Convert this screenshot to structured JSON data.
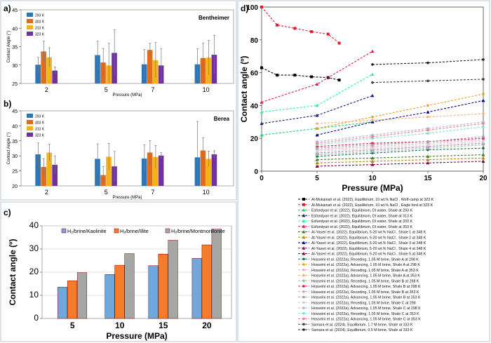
{
  "panels": {
    "a": "a)",
    "b": "b)",
    "c": "c)",
    "d": "d)"
  },
  "chart_data": [
    {
      "id": "a",
      "type": "bar",
      "title": "Bentheimer",
      "xlabel": "Pressure  (MPa)",
      "ylabel": "Contact Angle (°)",
      "ylim": [
        25,
        45
      ],
      "yticks": [
        25,
        30,
        35,
        40,
        45
      ],
      "categories": [
        "2",
        "5",
        "7",
        "10"
      ],
      "legend_location": "top-left",
      "series": [
        {
          "name": "293 K",
          "color": "#2e75b6",
          "values": [
            30.1,
            32.7,
            30.2,
            30.2
          ],
          "errors": [
            2.0,
            3.8,
            4.0,
            4.2
          ]
        },
        {
          "name": "303 K",
          "color": "#e06c1f",
          "values": [
            33.7,
            30.7,
            34.1,
            31.9
          ],
          "errors": [
            2.8,
            3.8,
            1.8,
            4.0
          ]
        },
        {
          "name": "313 K",
          "color": "#f2b418",
          "values": [
            32.1,
            29.9,
            31.3,
            32.0
          ],
          "errors": [
            2.6,
            6.0,
            4.8,
            4.7
          ]
        },
        {
          "name": "323 K",
          "color": "#7030a0",
          "values": [
            28.5,
            33.3,
            29.9,
            32.8
          ],
          "errors": [
            1.0,
            6.3,
            4.6,
            5.3
          ]
        }
      ]
    },
    {
      "id": "b",
      "type": "bar",
      "title": "Berea",
      "xlabel": "Pressure  (MPa)",
      "ylabel": "Contact Angle (°)",
      "ylim": [
        20,
        45
      ],
      "yticks": [
        20,
        25,
        30,
        35,
        40,
        45
      ],
      "categories": [
        "2",
        "5",
        "7",
        "10"
      ],
      "legend_location": "top-left",
      "series": [
        {
          "name": "293 K",
          "color": "#2e75b6",
          "values": [
            30.5,
            29.0,
            29.1,
            29.5
          ],
          "errors": [
            3.8,
            5.0,
            4.6,
            12.0
          ]
        },
        {
          "name": "303 K",
          "color": "#e06c1f",
          "values": [
            26.3,
            23.6,
            31.1,
            31.8
          ],
          "errors": [
            2.7,
            2.8,
            4.0,
            4.2
          ]
        },
        {
          "name": "313 K",
          "color": "#f2b418",
          "values": [
            31.1,
            29.7,
            29.6,
            29.0
          ],
          "errors": [
            2.8,
            4.5,
            3.8,
            2.6
          ]
        },
        {
          "name": "323 K",
          "color": "#7030a0",
          "values": [
            27.0,
            26.5,
            30.1,
            30.5
          ],
          "errors": [
            3.0,
            5.0,
            1.0,
            1.2
          ]
        }
      ]
    },
    {
      "id": "c",
      "type": "bar",
      "title": "",
      "xlabel": "Pressure (MPa)",
      "ylabel": "Contact angle (º)",
      "ylim": [
        0,
        40
      ],
      "yticks": [
        0,
        10,
        20,
        30,
        40
      ],
      "categories": [
        "5",
        "10",
        "15",
        "20"
      ],
      "legend_location": "top",
      "series": [
        {
          "name": "H₂/brine/Kaolinite",
          "color": "#6fa8dc",
          "values": [
            13.5,
            19.0,
            22.8,
            26.0
          ]
        },
        {
          "name": "H₂/brine/Illite",
          "color": "#f47c2c",
          "values": [
            16.3,
            23.0,
            27.8,
            31.8
          ]
        },
        {
          "name": "H₂/brine/Montmorillonite",
          "color": "#a6a6a6",
          "values": [
            19.8,
            28.0,
            33.8,
            38.6
          ]
        }
      ]
    },
    {
      "id": "d",
      "type": "line",
      "title": "",
      "xlabel": "Pressure (MPa)",
      "ylabel": "Contact angle (º)",
      "xlim": [
        0,
        20
      ],
      "ylim": [
        0,
        100
      ],
      "xticks": [
        0,
        5,
        10,
        15,
        20
      ],
      "yticks": [
        0,
        20,
        40,
        60,
        80,
        100
      ],
      "legend_location": "below",
      "series": [
        {
          "name": "Al-Mukainah et al. (2022), Equilibrium, 10 wt.% NaCl , Wolf-camp at 323 K",
          "color": "#000000",
          "marker": "square",
          "x": [
            0,
            1.4,
            3,
            4.5,
            6,
            7
          ],
          "y": [
            63,
            58.5,
            58.5,
            57.5,
            57,
            55.5
          ]
        },
        {
          "name": "Al-Mukainah et al. (2022), Equilibrium, 10 wt.% NaCl , Eagle ford at 323 K",
          "color": "#e8172c",
          "marker": "square",
          "x": [
            0,
            1.4,
            3,
            4.5,
            6,
            7
          ],
          "y": [
            100,
            89,
            87,
            85,
            83.5,
            78
          ]
        },
        {
          "name": "Esfandyari et al. (2022), Equilibrium, DI water, Shale at 293 K",
          "color": "#22d36a",
          "marker": "triangle",
          "x": [
            0,
            5,
            10
          ],
          "y": [
            22,
            26,
            30
          ]
        },
        {
          "name": "Esfandyari et al. (2022), Equilibrium, DI water, Shale at 313 K",
          "color": "#1a1a7a",
          "marker": "triangle",
          "x": [
            0,
            5,
            10
          ],
          "y": [
            29,
            34,
            46
          ]
        },
        {
          "name": "Esfandyari et al. (2022), Equilibrium, DI water, Shale at 333 K",
          "color": "#2cf0a0",
          "marker": "triangle",
          "x": [
            0,
            5,
            10
          ],
          "y": [
            36,
            40,
            59
          ]
        },
        {
          "name": "Esfandyari et al. (2022), Equilibrium, DI water, Shale at 353 K",
          "color": "#e8174a",
          "marker": "triangle",
          "x": [
            0,
            5,
            10
          ],
          "y": [
            42,
            53,
            73
          ]
        },
        {
          "name": "Al-Yaseri et al. (2022), Equilibrium, 5-20 wt.% NaCl , Shale 1 at 348 K",
          "color": "#4a7a2a",
          "marker": "triangle",
          "x": [
            5,
            10,
            15,
            20
          ],
          "y": [
            7,
            8,
            9,
            10
          ]
        },
        {
          "name": "Al-Yaseri et al. (2022), Equilibrium, 5-20 wt.% NaCl , Shale 2 at 348 K",
          "color": "#b8860b",
          "marker": "triangle",
          "x": [
            5,
            10,
            15,
            20
          ],
          "y": [
            5,
            6,
            7,
            8
          ]
        },
        {
          "name": "Al-Yaseri et al. (2022), Equilibrium, 5-20 wt.% NaCl , Shale 3 at 348 K",
          "color": "#00008b",
          "marker": "triangle",
          "x": [
            5,
            10,
            15,
            20
          ],
          "y": [
            22,
            30,
            36,
            43
          ]
        },
        {
          "name": "Al-Yaseri et al. (2022), Equilibrium, 5-20 wt.% NaCl , Shale 4 at 348 K",
          "color": "#8b0a5a",
          "marker": "triangle",
          "x": [
            5,
            10,
            15,
            20
          ],
          "y": [
            11,
            13,
            15,
            17
          ]
        },
        {
          "name": "Al-Yaseri et al. (2022), Equilibrium, 5-20 wt.% NaCl , Shale 5 at 348 K",
          "color": "#7a0a3a",
          "marker": "triangle",
          "x": [
            5,
            10,
            15,
            20
          ],
          "y": [
            3,
            4,
            5,
            6
          ]
        },
        {
          "name": "Hosseini et al. (2022a), Receding, 1.05 M brine, Shale A at 298 K",
          "color": "#1a6b5a",
          "marker": "circle",
          "x": [
            5,
            10,
            15,
            20
          ],
          "y": [
            9,
            11,
            13,
            14
          ]
        },
        {
          "name": "Hosseini et al. (2022a), Advancing, 1.05 M brine, Shale A at 298 K",
          "color": "#e8a020",
          "marker": "circle",
          "x": [
            5,
            10,
            15,
            20
          ],
          "y": [
            26,
            33,
            40,
            47
          ]
        },
        {
          "name": "Hosseini et al. (2022a), Receding, 1.05 M brine, Shale A at 353 K",
          "color": "#f0a8c0",
          "marker": "circle",
          "x": [
            5,
            10,
            15,
            20
          ],
          "y": [
            13,
            15,
            17,
            19
          ]
        },
        {
          "name": "Hosseini et al. (2022a), Advancing, 1.05 M brine, Shale A at 353 K",
          "color": "#f4b080",
          "marker": "circle",
          "x": [
            5,
            10,
            15,
            20
          ],
          "y": [
            29,
            31,
            33,
            35
          ]
        },
        {
          "name": "Hosseini et al. (2022a), Receding, 1.05 M brine, Shale B at 298 K",
          "color": "#90c890",
          "marker": "circle",
          "x": [
            5,
            10,
            15,
            20
          ],
          "y": [
            10,
            12,
            14,
            16
          ]
        },
        {
          "name": "Hosseini et al. (2022a), Advancing, 1.05 M brine, Shale B at 298 K",
          "color": "#e8174a",
          "marker": "circle",
          "x": [
            5,
            10,
            15,
            20
          ],
          "y": [
            15,
            17,
            18,
            20
          ]
        },
        {
          "name": "Hosseini et al. (2022a), Receding, 1.05 M brine, Shale B at 353 K",
          "color": "#c8a0d8",
          "marker": "circle",
          "x": [
            5,
            10,
            15,
            20
          ],
          "y": [
            11,
            13,
            15,
            17
          ]
        },
        {
          "name": "Hosseini et al. (2022a), Advancing, 1.05 M brine, Shale B at 353 K",
          "color": "#a0a0a0",
          "marker": "circle",
          "x": [
            5,
            10,
            15,
            20
          ],
          "y": [
            14,
            16,
            18,
            21
          ]
        },
        {
          "name": "Hosseini et al. (2022a), Receding, 1.05 M brine, Shale C at 298",
          "color": "#d0d0d0",
          "marker": "circle",
          "x": [
            5,
            10,
            15,
            20
          ],
          "y": [
            12,
            14,
            16,
            18
          ]
        },
        {
          "name": "Hosseini et al. (2022a), Advancing, 1.05 M brine, Shale C at 298 K",
          "color": "#b0b0e0",
          "marker": "circle",
          "x": [
            5,
            10,
            15,
            20
          ],
          "y": [
            18,
            22,
            26,
            30
          ]
        },
        {
          "name": "Hosseini et al. (2022a), Receding, 1.05 M brine, Shale C at 353 K",
          "color": "#80e0d0",
          "marker": "circle",
          "x": [
            5,
            10,
            15,
            20
          ],
          "y": [
            16,
            20,
            23,
            27
          ]
        },
        {
          "name": "Hosseini et al. (2022a), Advancing, 1.05 M brine, Shale C at 353 K",
          "color": "#f08080",
          "marker": "circle",
          "x": [
            5,
            10,
            15,
            20
          ],
          "y": [
            17,
            21,
            25,
            29
          ]
        },
        {
          "name": "Samara et al. (2024), Equilibrium, 1.7 M brine, Shale at 333 K",
          "color": "#404040",
          "marker": "circle",
          "x": [
            10,
            15,
            20
          ],
          "y": [
            54,
            55,
            56
          ]
        },
        {
          "name": "Samara et al. (2024), Equilibrium, 0.5 M brine, Shale at 333 K",
          "color": "#202020",
          "marker": "circle",
          "x": [
            10,
            15,
            20
          ],
          "y": [
            65,
            66,
            68
          ]
        }
      ]
    }
  ]
}
